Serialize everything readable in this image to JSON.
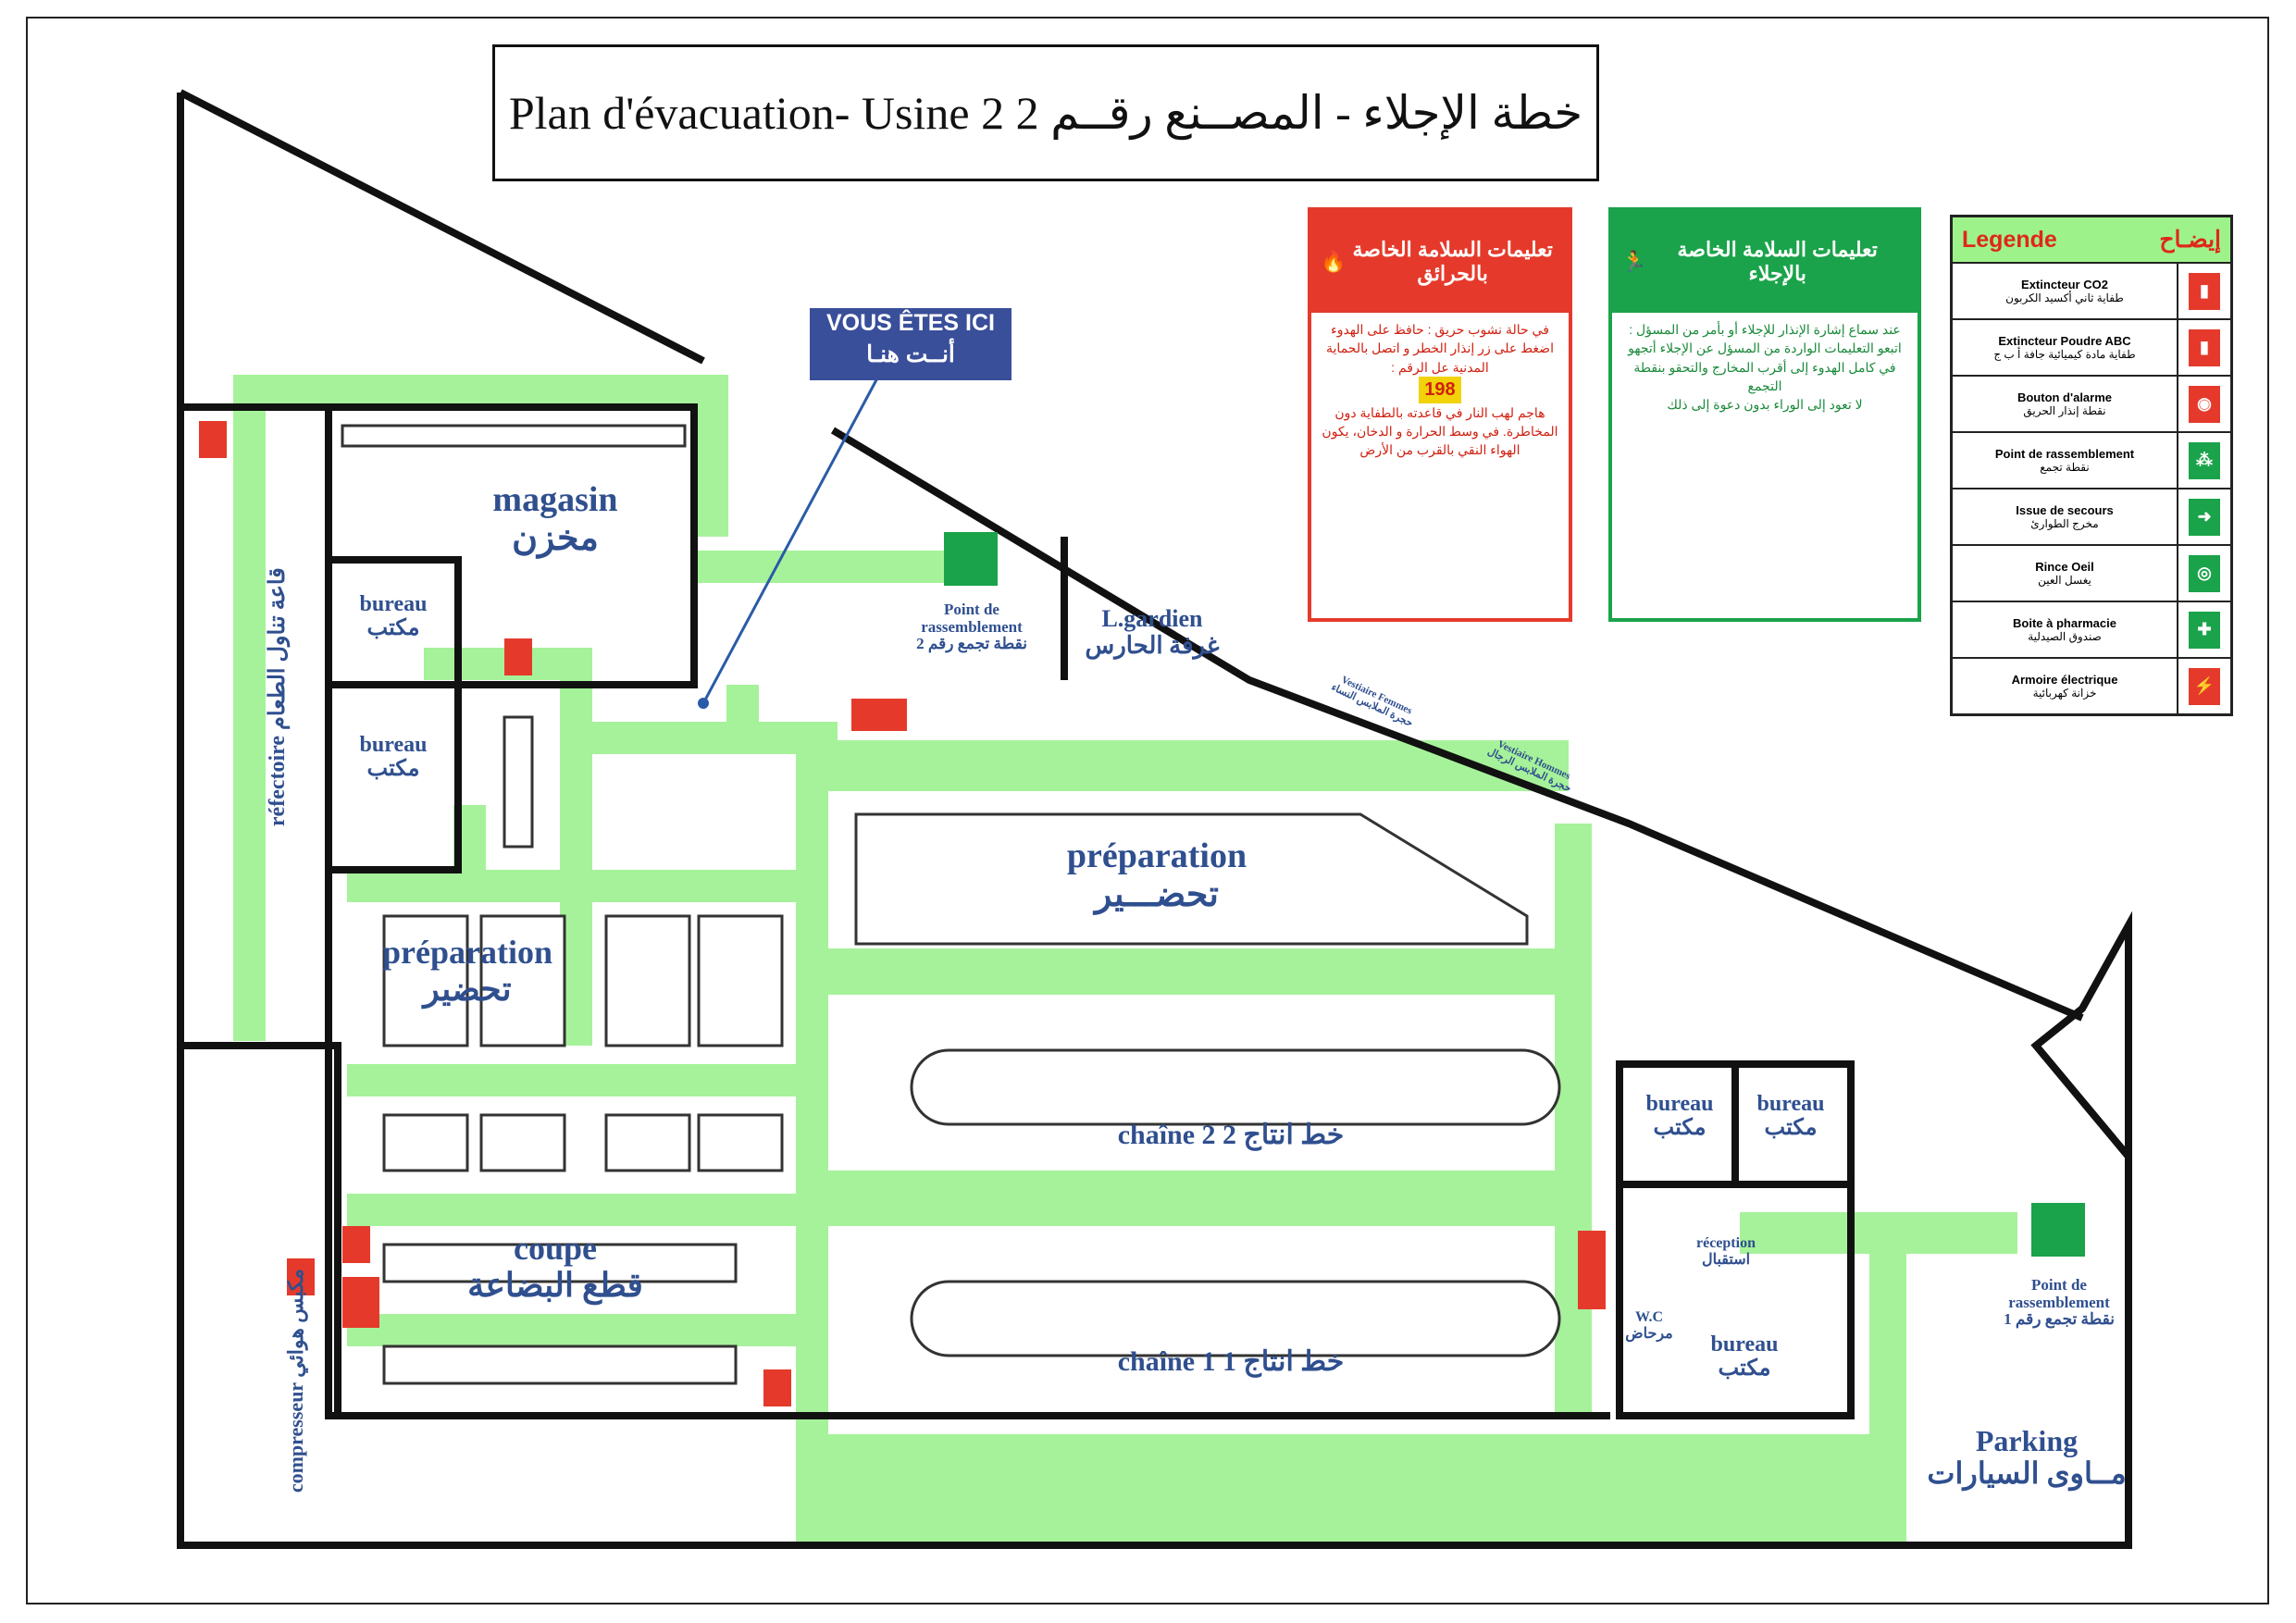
{
  "title": "Plan d'évacuation- Usine 2 خطة الإجلاء - المصــنع رقــم 2",
  "you_are_here": {
    "fr": "VOUS ÊTES ICI",
    "ar": "أنــت هنـا"
  },
  "rooms": {
    "magasin": {
      "fr": "magasin",
      "ar": "مخزن"
    },
    "bureau1": {
      "fr": "bureau",
      "ar": "مكتب"
    },
    "bureau2": {
      "fr": "bureau",
      "ar": "مكتب"
    },
    "refectoire": {
      "fr": "réfectoire",
      "ar": "قاعة تناول الطعام"
    },
    "prep_left": {
      "fr": "préparation",
      "ar": "تحضير"
    },
    "prep_main": {
      "fr": "préparation",
      "ar": "تحضـــير"
    },
    "coupe": {
      "fr": "coupe",
      "ar": "قطع البضاعة"
    },
    "chaine2": {
      "fr": "chaîne 2",
      "ar": "خط انتاج 2"
    },
    "chaine1": {
      "fr": "chaîne 1",
      "ar": "خط انتاج 1"
    },
    "gardien": {
      "fr": "L.gardien",
      "ar": "غرفة الحارس"
    },
    "bureau3": {
      "fr": "bureau",
      "ar": "مكتب"
    },
    "bureau4": {
      "fr": "bureau",
      "ar": "مكتب"
    },
    "bureau5": {
      "fr": "bureau",
      "ar": "مكتب"
    },
    "reception": {
      "fr": "réception",
      "ar": "استقبال"
    },
    "wc": {
      "fr": "W.C",
      "ar": "مرحاض"
    },
    "compresseur": {
      "fr": "compresseur",
      "ar": "مكبس هوائي"
    },
    "parking": {
      "fr": "Parking",
      "ar": "مــاوى السيارات"
    },
    "vestiaire_f": {
      "fr": "Vestiaire Femmes",
      "ar": "حجرة الملابس النساء"
    },
    "vestiaire_h": {
      "fr": "Vestiaire Hommes",
      "ar": "حجرة الملابس الرجال"
    }
  },
  "assembly_points": [
    {
      "fr": "Point de rassemblement",
      "ar": "نقطة تجمع رقم 2"
    },
    {
      "fr": "Point de rassemblement",
      "ar": "نقطة تجمع رقم 1"
    }
  ],
  "fire_panel": {
    "header": "تعليمات السلامة الخاصة بالحرائق",
    "line1": "في حالة نشوب حريق : حافظ على الهدوء",
    "line2": "اضغط على زر إنذار الخطر و اتصل بالحماية المدنية عل الرقم :",
    "number": "198",
    "line3": "هاجم لهب النار في قاعدته بالطفاية دون المخاطرة. في وسط الحرارة و الدخان، يكون الهواء النقي بالقرب من الأرض"
  },
  "evac_panel": {
    "header": "تعليمات السلامة الخاصة بالإجلاء",
    "line1": "عند سماع إشارة الإنذار للإجلاء أو بأمر من المسؤل :",
    "line2": "اتبعو التعليمات الواردة من المسؤل عن الإجلاء أتجهو في كامل الهدوء إلى أقرب المخارج والتحقو بنقطة التجمع",
    "line3": "لا تعود إلى الوراء بدون دعوة إلى ذلك"
  },
  "legend": {
    "title_fr": "Legende",
    "title_ar": "إيضـاح",
    "items": [
      {
        "fr": "Extincteur CO2",
        "ar": "طفاية ثاني أكسيد الكربون",
        "icon": "co2-extinguisher-icon",
        "color": "#e53a2b"
      },
      {
        "fr": "Extincteur Poudre ABC",
        "ar": "طفاية مادة كيميائية جافة أ ب ج",
        "icon": "abc-extinguisher-icon",
        "color": "#e53a2b"
      },
      {
        "fr": "Bouton d'alarme",
        "ar": "نقطة إنذار الحريق",
        "icon": "alarm-button-icon",
        "color": "#e53a2b"
      },
      {
        "fr": "Point de rassemblement",
        "ar": "نقطة تجمع",
        "icon": "assembly-point-icon",
        "color": "#1aa34a"
      },
      {
        "fr": "Issue de secours",
        "ar": "مخرج الطوارئ",
        "icon": "emergency-exit-icon",
        "color": "#1aa34a"
      },
      {
        "fr": "Rince Oeil",
        "ar": "يغسل العين",
        "icon": "eye-wash-icon",
        "color": "#1aa34a"
      },
      {
        "fr": "Boite à pharmacie",
        "ar": "صندوق الصيدلية",
        "icon": "first-aid-icon",
        "color": "#1aa34a"
      },
      {
        "fr": "Armoire électrique",
        "ar": "خزانة كهربائية",
        "icon": "electrical-cabinet-icon",
        "color": "#e53a2b"
      }
    ]
  },
  "colors": {
    "route": "#a6f29a",
    "arrow": "#1aa34a",
    "wall": "#111111",
    "label": "#2f4f8f",
    "fire": "#e53a2b",
    "safety": "#1aa34a"
  }
}
